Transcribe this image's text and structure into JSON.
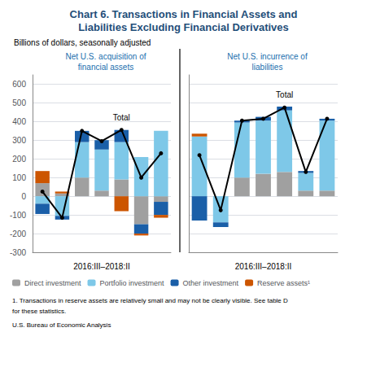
{
  "title": "Chart 6. Transactions in Financial Assets and\nLiabilities Excluding Financial Derivatives",
  "subtitle": "Billions of dollars, seasonally adjusted",
  "annotations": [
    "1. Transactions in reserve assets are relatively small and may not be clearly visible. See table D",
    "for these statistics.",
    "U.S. Bureau of Economic Analysis"
  ],
  "legend": "bottom",
  "chart_data": [
    {
      "type": "bar",
      "title": "Net U.S. acquisition of\nfinancial assets",
      "xlabel": "2016:III–2018:II",
      "categories": [
        null,
        null,
        null,
        null,
        null,
        null,
        null
      ],
      "stacked": true,
      "grid": true,
      "tick_labels": "y",
      "ylim": [
        -300,
        650
      ],
      "yticks": [
        -300,
        -200,
        -100,
        0,
        100,
        200,
        300,
        400,
        500,
        600
      ],
      "series": [
        {
          "name": "Direct investment",
          "type": "bar",
          "color": "#a0a0a0",
          "values": [
            70,
            15,
            100,
            30,
            90,
            -150,
            -30
          ]
        },
        {
          "name": "Portfolio investment",
          "type": "bar",
          "color": "#7ec8e8",
          "values": [
            -40,
            -105,
            190,
            220,
            200,
            210,
            350
          ]
        },
        {
          "name": "Other investment",
          "type": "bar",
          "color": "#1a5fa8",
          "values": [
            -55,
            -20,
            60,
            50,
            65,
            -50,
            -70
          ]
        },
        {
          "name": "Reserve assets¹",
          "type": "bar",
          "color": "#cc5500",
          "values": [
            65,
            10,
            0,
            0,
            -80,
            -10,
            -15
          ]
        },
        {
          "name": "Total",
          "type": "line",
          "color": "#000000",
          "marker": "o",
          "values": [
            25,
            -115,
            350,
            295,
            355,
            100,
            230
          ]
        }
      ]
    },
    {
      "type": "bar",
      "title": "Net U.S. incurrence of\nliabilities",
      "xlabel": "2016:III–2018:II",
      "categories": [
        null,
        null,
        null,
        null,
        null,
        null,
        null
      ],
      "stacked": true,
      "grid": true,
      "tick_labels": false,
      "ylim": [
        -300,
        650
      ],
      "yticks": [
        -300,
        -200,
        -100,
        0,
        100,
        200,
        300,
        400,
        500,
        600
      ],
      "series": [
        {
          "name": "Direct investment",
          "type": "bar",
          "color": "#a0a0a0",
          "values": [
            0,
            0,
            100,
            120,
            130,
            30,
            30
          ]
        },
        {
          "name": "Portfolio investment",
          "type": "bar",
          "color": "#7ec8e8",
          "values": [
            320,
            -140,
            295,
            285,
            330,
            95,
            375
          ]
        },
        {
          "name": "Other investment",
          "type": "bar",
          "color": "#1a5fa8",
          "values": [
            -130,
            -25,
            10,
            20,
            20,
            10,
            10
          ]
        },
        {
          "name": "Reserve assets¹",
          "type": "bar",
          "color": "#cc5500",
          "values": [
            15,
            0,
            0,
            0,
            0,
            0,
            0
          ]
        },
        {
          "name": "Total",
          "type": "line",
          "color": "#000000",
          "marker": "o",
          "values": [
            220,
            -75,
            405,
            415,
            475,
            130,
            415
          ]
        }
      ]
    }
  ]
}
